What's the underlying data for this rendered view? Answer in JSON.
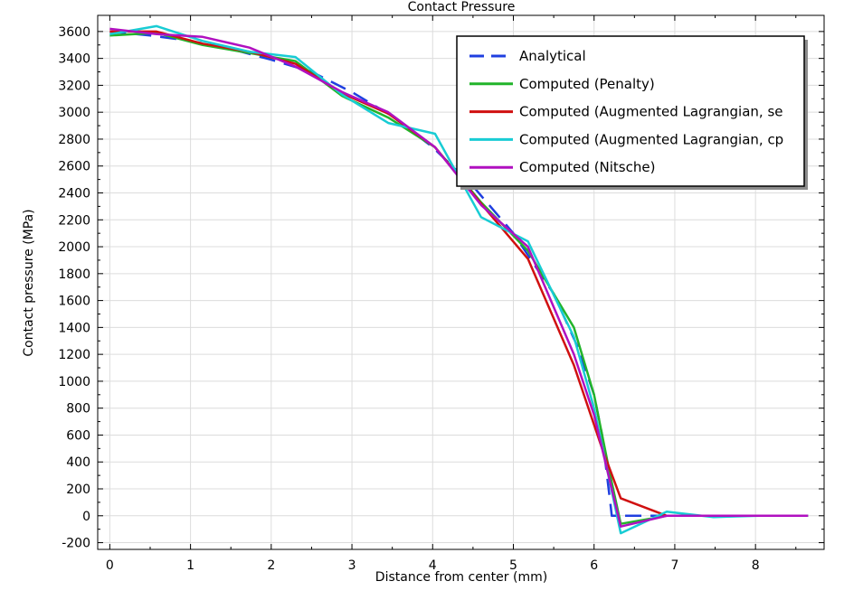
{
  "chart_data": {
    "type": "line",
    "title": "Contact Pressure",
    "xlabel": "Distance from center (mm)",
    "ylabel": "Contact pressure (MPa)",
    "xlim": [
      -0.15,
      8.85
    ],
    "ylim": [
      -250,
      3720
    ],
    "xticks": [
      0,
      1,
      2,
      3,
      4,
      5,
      6,
      7,
      8
    ],
    "yticks": [
      -200,
      0,
      200,
      400,
      600,
      800,
      1000,
      1200,
      1400,
      1600,
      1800,
      2000,
      2200,
      2400,
      2600,
      2800,
      3000,
      3200,
      3400,
      3600
    ],
    "grid": true,
    "legend_position": "top-right",
    "series": [
      {
        "name": "Analytical",
        "color": "#1f3fe0",
        "dash": true,
        "x": [
          0,
          0.5,
          1.0,
          1.5,
          2.0,
          2.5,
          3.0,
          3.5,
          4.0,
          4.5,
          5.0,
          5.5,
          5.8,
          6.0,
          6.1,
          6.15,
          6.2,
          6.22,
          6.3,
          7.0,
          8.0,
          8.65
        ],
        "y": [
          3600,
          3570,
          3530,
          3470,
          3390,
          3300,
          3150,
          2970,
          2740,
          2450,
          2100,
          1650,
          1250,
          900,
          600,
          350,
          100,
          0,
          0,
          0,
          0,
          0
        ]
      },
      {
        "name": "Computed (Penalty)",
        "color": "#22b42a",
        "dash": false,
        "x": [
          0,
          0.58,
          1.15,
          1.73,
          2.3,
          2.88,
          3.45,
          4.03,
          4.6,
          5.18,
          5.75,
          6.0,
          6.2,
          6.33,
          6.9,
          7.48,
          8.05,
          8.65
        ],
        "y": [
          3570,
          3590,
          3500,
          3440,
          3380,
          3120,
          2960,
          2740,
          2330,
          1970,
          1400,
          900,
          300,
          -60,
          0,
          0,
          0,
          0
        ]
      },
      {
        "name": "Computed (Augmented Lagrangian, se",
        "color": "#d01010",
        "dash": false,
        "x": [
          0,
          0.58,
          1.15,
          1.73,
          2.3,
          2.88,
          3.45,
          4.03,
          4.6,
          5.18,
          5.75,
          6.1,
          6.33,
          6.9,
          7.48,
          8.05,
          8.65
        ],
        "y": [
          3600,
          3600,
          3510,
          3450,
          3360,
          3140,
          2990,
          2740,
          2320,
          1910,
          1120,
          500,
          130,
          0,
          0,
          0,
          0
        ]
      },
      {
        "name": "Computed (Augmented Lagrangian, cp",
        "color": "#18ccd4",
        "dash": false,
        "x": [
          0,
          0.58,
          1.15,
          1.73,
          2.3,
          2.88,
          3.45,
          4.03,
          4.6,
          5.18,
          5.75,
          6.0,
          6.33,
          6.9,
          7.48,
          8.05,
          8.65
        ],
        "y": [
          3580,
          3640,
          3530,
          3450,
          3410,
          3130,
          2920,
          2840,
          2220,
          2040,
          1330,
          800,
          -130,
          30,
          -10,
          0,
          0
        ]
      },
      {
        "name": "Computed (Nitsche)",
        "color": "#b010c0",
        "dash": false,
        "x": [
          0,
          0.58,
          1.15,
          1.73,
          2.3,
          2.88,
          3.45,
          4.03,
          4.6,
          5.18,
          5.75,
          6.0,
          6.33,
          6.9,
          7.48,
          8.05,
          8.65
        ],
        "y": [
          3620,
          3580,
          3560,
          3480,
          3340,
          3150,
          3000,
          2740,
          2310,
          2000,
          1200,
          750,
          -80,
          0,
          0,
          0,
          0
        ]
      }
    ]
  }
}
